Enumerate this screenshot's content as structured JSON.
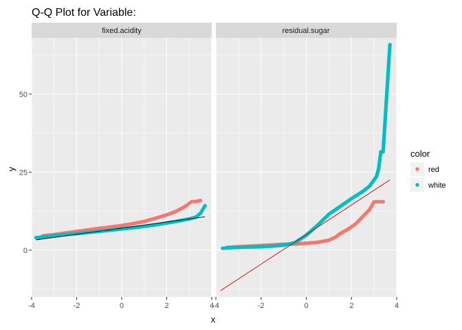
{
  "chart_data": {
    "type": "scatter",
    "title": "Q-Q Plot for Variable:",
    "xlabel": "x",
    "ylabel": "y",
    "xlim": [
      -4,
      4
    ],
    "ylim": [
      -15,
      68
    ],
    "x_ticks": [
      -4,
      -2,
      0,
      2,
      4
    ],
    "y_ticks": [
      0,
      25,
      50
    ],
    "grid": true,
    "legend": {
      "title": "color",
      "placement": "right",
      "entries": [
        {
          "name": "red",
          "color": "#f8766d"
        },
        {
          "name": "white",
          "color": "#00bfc4"
        }
      ]
    },
    "facets": [
      {
        "label": "fixed.acidity",
        "series": [
          {
            "name": "red",
            "color": "#f8766d",
            "points": [
              [
                -3.5,
                4.6
              ],
              [
                -3.0,
                5.0
              ],
              [
                -2.5,
                5.5
              ],
              [
                -2.0,
                6.0
              ],
              [
                -1.5,
                6.5
              ],
              [
                -1.0,
                7.0
              ],
              [
                -0.5,
                7.4
              ],
              [
                0.0,
                7.9
              ],
              [
                0.5,
                8.5
              ],
              [
                1.0,
                9.2
              ],
              [
                1.5,
                10.2
              ],
              [
                2.0,
                11.3
              ],
              [
                2.4,
                12.4
              ],
              [
                2.7,
                13.5
              ],
              [
                2.9,
                14.4
              ],
              [
                3.0,
                15.0
              ],
              [
                3.1,
                15.5
              ],
              [
                3.3,
                15.6
              ],
              [
                3.5,
                15.9
              ]
            ]
          },
          {
            "name": "white",
            "color": "#00bfc4",
            "points": [
              [
                -3.8,
                4.0
              ],
              [
                -3.2,
                4.5
              ],
              [
                -2.5,
                5.0
              ],
              [
                -2.0,
                5.3
              ],
              [
                -1.5,
                5.7
              ],
              [
                -1.0,
                6.0
              ],
              [
                -0.5,
                6.4
              ],
              [
                0.0,
                6.8
              ],
              [
                0.5,
                7.2
              ],
              [
                1.0,
                7.6
              ],
              [
                1.5,
                8.1
              ],
              [
                2.0,
                8.7
              ],
              [
                2.5,
                9.3
              ],
              [
                3.0,
                10.0
              ],
              [
                3.3,
                10.6
              ],
              [
                3.5,
                11.8
              ],
              [
                3.7,
                14.2
              ]
            ]
          }
        ],
        "reference_line": {
          "color": "#000000",
          "from": [
            -3.8,
            3.3
          ],
          "to": [
            3.7,
            10.7
          ]
        }
      },
      {
        "label": "residual.sugar",
        "series": [
          {
            "name": "red",
            "color": "#f8766d",
            "points": [
              [
                -3.5,
                0.9
              ],
              [
                -3.0,
                1.1
              ],
              [
                -2.5,
                1.3
              ],
              [
                -2.0,
                1.5
              ],
              [
                -1.5,
                1.7
              ],
              [
                -1.0,
                1.9
              ],
              [
                -0.5,
                2.0
              ],
              [
                0.0,
                2.2
              ],
              [
                0.5,
                2.5
              ],
              [
                1.0,
                3.2
              ],
              [
                1.3,
                4.2
              ],
              [
                1.5,
                5.3
              ],
              [
                1.8,
                6.5
              ],
              [
                2.0,
                7.5
              ],
              [
                2.2,
                8.5
              ],
              [
                2.4,
                10.0
              ],
              [
                2.6,
                11.5
              ],
              [
                2.8,
                13.0
              ],
              [
                3.0,
                15.5
              ],
              [
                3.2,
                15.5
              ],
              [
                3.4,
                15.5
              ]
            ]
          },
          {
            "name": "white",
            "color": "#00bfc4",
            "points": [
              [
                -3.7,
                0.6
              ],
              [
                -3.3,
                0.8
              ],
              [
                -3.0,
                0.9
              ],
              [
                -2.5,
                1.0
              ],
              [
                -2.0,
                1.1
              ],
              [
                -1.5,
                1.3
              ],
              [
                -1.0,
                1.6
              ],
              [
                -0.5,
                2.4
              ],
              [
                0.0,
                4.8
              ],
              [
                0.5,
                8.0
              ],
              [
                1.0,
                11.5
              ],
              [
                1.5,
                14.0
              ],
              [
                2.0,
                16.5
              ],
              [
                2.5,
                18.8
              ],
              [
                2.8,
                20.5
              ],
              [
                3.0,
                22.5
              ],
              [
                3.1,
                23.5
              ],
              [
                3.2,
                26.0
              ],
              [
                3.3,
                31.5
              ],
              [
                3.4,
                31.5
              ],
              [
                3.7,
                65.8
              ]
            ]
          }
        ],
        "reference_line": {
          "color": "#cc0000",
          "from": [
            -3.8,
            -13.0
          ],
          "to": [
            3.7,
            22.5
          ]
        }
      }
    ]
  }
}
